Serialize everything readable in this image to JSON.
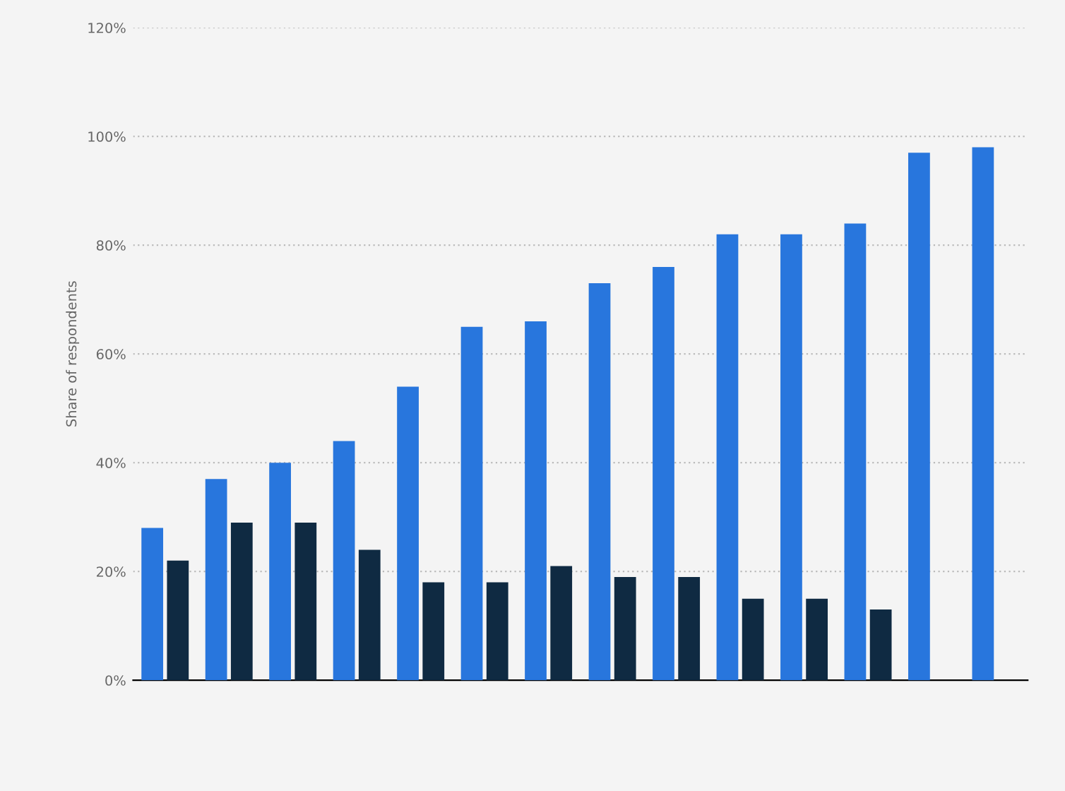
{
  "chart_data": {
    "type": "bar",
    "ylabel": "Share of respondents",
    "categories": [
      null,
      null,
      null,
      null,
      null,
      null,
      null,
      null,
      null,
      null,
      null,
      null,
      null,
      null
    ],
    "series": [
      {
        "color": "#2876dd",
        "values": [
          28,
          37,
          40,
          44,
          54,
          65,
          66,
          73,
          76,
          82,
          82,
          84,
          97,
          98
        ]
      },
      {
        "color": "#0f2a42",
        "values": [
          22,
          29,
          29,
          24,
          18,
          18,
          21,
          19,
          19,
          15,
          15,
          13,
          null,
          null
        ]
      }
    ],
    "ylim": [
      0,
      120
    ],
    "yticks": [
      {
        "value": 0,
        "label": "0%"
      },
      {
        "value": 20,
        "label": "20%"
      },
      {
        "value": 40,
        "label": "40%"
      },
      {
        "value": 60,
        "label": "60%"
      },
      {
        "value": 80,
        "label": "80%"
      },
      {
        "value": 100,
        "label": "100%"
      },
      {
        "value": 120,
        "label": "120%"
      }
    ],
    "grid": "y",
    "legend": false
  }
}
